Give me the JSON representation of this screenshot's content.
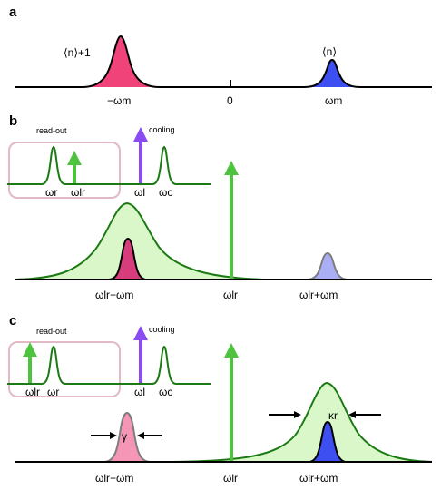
{
  "panels": {
    "a": {
      "label": "a",
      "left_peak_label": "⟨n⟩+1",
      "right_peak_label": "⟨n⟩",
      "ticks": [
        "−ωm",
        "0",
        "ωm"
      ],
      "colors": {
        "left_peak": "#f0437a",
        "right_peak": "#3d4ff0"
      }
    },
    "b": {
      "label": "b",
      "readout_label": "read-out",
      "cooling_label": "cooling",
      "inset_ticks": [
        "ωr",
        "ωlr",
        "ωl",
        "ωc"
      ],
      "ticks": [
        "ωlr−ωm",
        "ωlr",
        "ωlr+ωm"
      ],
      "colors": {
        "cavity_fill": "#d9f7c8",
        "cavity_line": "#1b7a13",
        "arrow_green": "#4fc23f",
        "arrow_purple": "#8a4cf2",
        "sideband_left": "#d63d7a",
        "sideband_right": "#a9aef5"
      }
    },
    "c": {
      "label": "c",
      "readout_label": "read-out",
      "cooling_label": "cooling",
      "inset_ticks": [
        "ωlr",
        "ωr",
        "ωl",
        "ωc"
      ],
      "ticks": [
        "ωlr−ωm",
        "ωlr",
        "ωlr+ωm"
      ],
      "gamma_label": "γ",
      "kappa_label": "κr",
      "colors": {
        "sideband_left": "#f596b7",
        "sideband_right": "#3d4ff0"
      }
    }
  }
}
